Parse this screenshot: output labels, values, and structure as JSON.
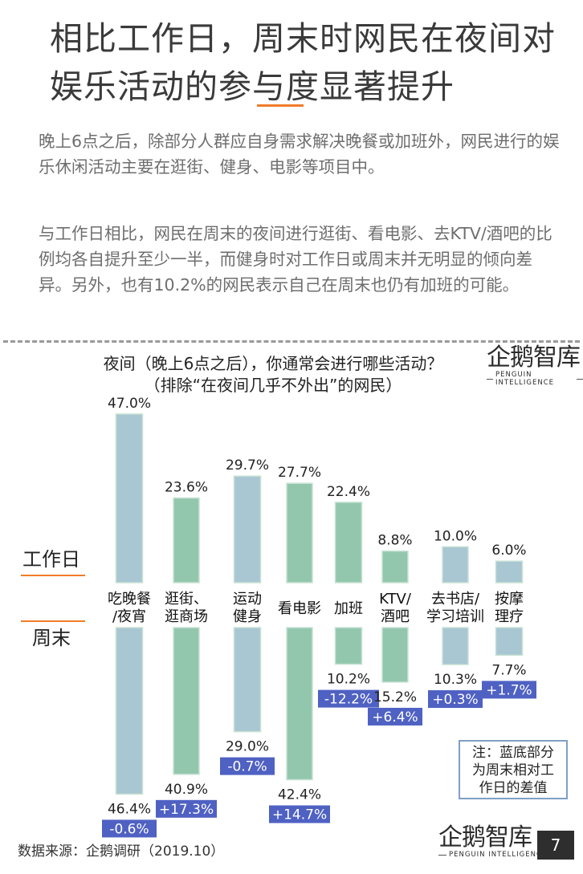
{
  "page": {
    "title": "相比工作日，周末时网民在夜间对娱乐活动的参与度显著提升",
    "paragraph1": "晚上6点之后，除部分人群应自身需求解决晚餐或加班外，网民进行的娱乐休闲活动主要在逛街、健身、电影等项目中。",
    "paragraph2": "与工作日相比，网民在周末的夜间进行逛街、看电影、去KTV/酒吧的比例均各自提升至少一半，而健身时对工作日或周末并无明显的倾向差异。另外，也有10.2%的网民表示自己在周末也仍有加班的可能。",
    "source": "数据来源：企鹅调研（2019.10）",
    "page_number": "7",
    "logo_text": "企鹅智库",
    "logo_sub": "PENGUIN INTELLIGENCE"
  },
  "note": {
    "line1": "注：蓝底部分",
    "line2": "为周末相对工",
    "line3": "作日的差值"
  },
  "chart_data": {
    "type": "bar",
    "title": "夜间（晚上6点之后），你通常会进行哪些活动？",
    "subtitle": "（排除“在夜间几乎不外出”的网民）",
    "categories": [
      "吃晚餐/夜宵",
      "逛街、逛商场",
      "运动健身",
      "看电影",
      "加班",
      "KTV/酒吧",
      "去书店/学习培训",
      "按摩理疗"
    ],
    "category_lines": [
      [
        "吃晚餐",
        "/夜宵"
      ],
      [
        "逛街、",
        "逛商场"
      ],
      [
        "运动",
        "健身"
      ],
      [
        "看电影"
      ],
      [
        "加班"
      ],
      [
        "KTV/",
        "酒吧"
      ],
      [
        "去书店/",
        "学习培训"
      ],
      [
        "按摩",
        "理疗"
      ]
    ],
    "series": [
      {
        "name": "工作日",
        "values": [
          47.0,
          23.6,
          29.7,
          27.7,
          22.4,
          8.8,
          10.0,
          6.0
        ],
        "labels": [
          "47.0%",
          "23.6%",
          "29.7%",
          "27.7%",
          "22.4%",
          "8.8%",
          "10.0%",
          "6.0%"
        ]
      },
      {
        "name": "周末",
        "values": [
          46.4,
          40.9,
          29.0,
          42.4,
          10.2,
          15.2,
          10.3,
          7.7
        ],
        "labels": [
          "46.4%",
          "40.9%",
          "29.0%",
          "42.4%",
          "10.2%",
          "15.2%",
          "10.3%",
          "7.7%"
        ]
      }
    ],
    "differences": [
      -0.6,
      17.3,
      -0.7,
      14.7,
      -12.2,
      6.4,
      0.3,
      1.7
    ],
    "difference_labels": [
      "-0.6%",
      "+17.3%",
      "-0.7%",
      "+14.7%",
      "-12.2%",
      "+6.4%",
      "+0.3%",
      "+1.7%"
    ],
    "colors": {
      "blue_bar": "#a9c6d3",
      "green_bar": "#93c7ad",
      "bar_stroke": "#c8e2d4",
      "diff_box": "#4f61c2",
      "accent": "#f07c28"
    }
  }
}
